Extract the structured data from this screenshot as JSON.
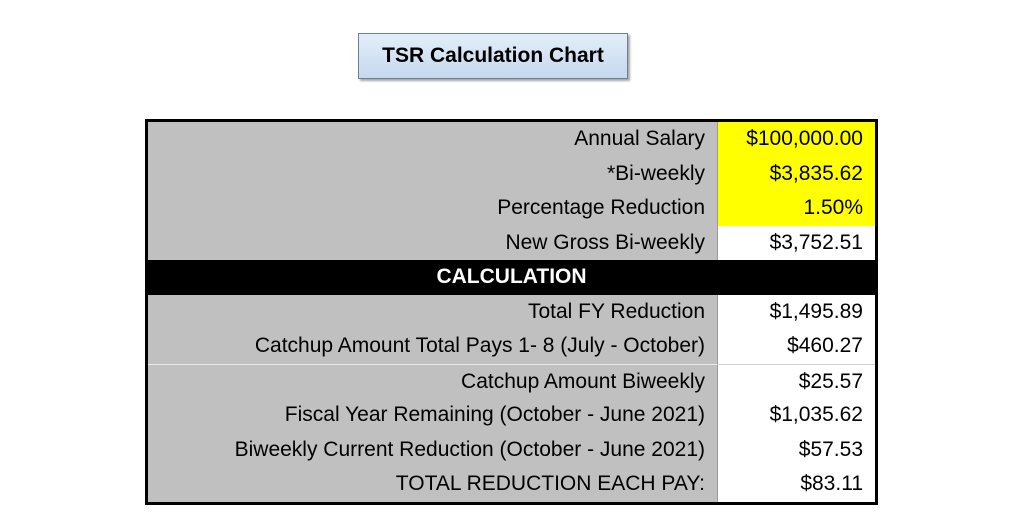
{
  "title": "TSR Calculation Chart",
  "inputs": [
    {
      "label": "Annual Salary",
      "value": "$100,000.00",
      "highlight": true
    },
    {
      "label": "*Bi-weekly",
      "value": "$3,835.62",
      "highlight": true
    },
    {
      "label": "Percentage Reduction",
      "value": "1.50%",
      "highlight": true
    },
    {
      "label": "New Gross Bi-weekly",
      "value": "$3,752.51",
      "highlight": false
    }
  ],
  "section_header": "CALCULATION",
  "calculations": [
    {
      "label": "Total FY Reduction",
      "value": "$1,495.89"
    },
    {
      "label": "Catchup Amount Total Pays 1- 8 (July - October)",
      "value": "$460.27"
    },
    {
      "label": "Catchup Amount Biweekly",
      "value": "$25.57"
    },
    {
      "label": "Fiscal Year Remaining (October - June 2021)",
      "value": "$1,035.62"
    },
    {
      "label": "Biweekly Current Reduction (October - June 2021)",
      "value": "$57.53"
    },
    {
      "label": "TOTAL REDUCTION EACH PAY:",
      "value": "$83.11"
    }
  ],
  "colors": {
    "highlight": "#ffff00",
    "label_bg": "#c0c0c0",
    "header_bg": "#000000",
    "title_bg": "#d5e3f3"
  }
}
